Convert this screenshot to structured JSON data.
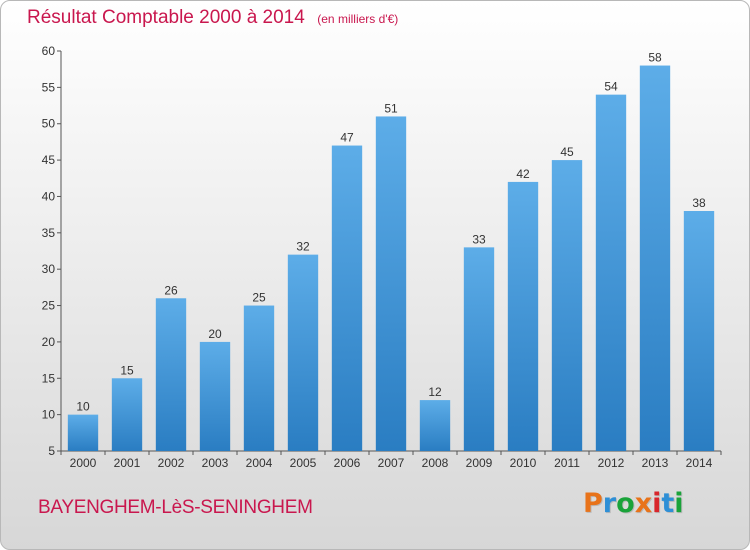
{
  "title": "Résultat Comptable 2000 à 2014",
  "subtitle": "(en milliers d'€)",
  "commune": "BAYENGHEM-LèS-SENINGHEM",
  "logo": {
    "text": "Proxiti",
    "colors": [
      "#e8731a",
      "#2e8fd6",
      "#1aa33a",
      "#e8731a",
      "#d8262c",
      "#2e8fd6",
      "#1aa33a"
    ]
  },
  "colors": {
    "bar_light": "#5dade8",
    "bar_dark": "#2a7dc2",
    "title": "#c9174e"
  },
  "chart_data": {
    "type": "bar",
    "categories": [
      "2000",
      "2001",
      "2002",
      "2003",
      "2004",
      "2005",
      "2006",
      "2007",
      "2008",
      "2009",
      "2010",
      "2011",
      "2012",
      "2013",
      "2014"
    ],
    "values": [
      10,
      15,
      26,
      20,
      25,
      32,
      47,
      51,
      12,
      33,
      42,
      45,
      54,
      58,
      38
    ],
    "ylim": [
      5,
      60
    ],
    "yticks": [
      5,
      10,
      15,
      20,
      25,
      30,
      35,
      40,
      45,
      50,
      55,
      60
    ],
    "grid": false,
    "xlabel": "",
    "ylabel": ""
  }
}
